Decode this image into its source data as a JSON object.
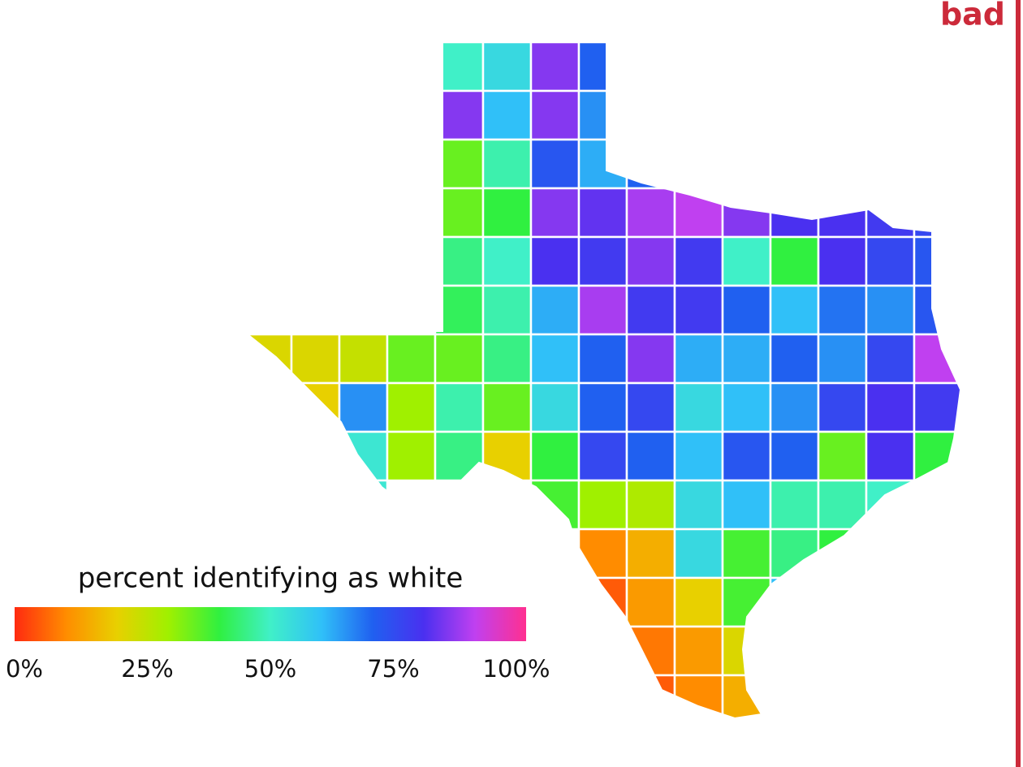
{
  "label": "bad",
  "chart_data": {
    "type": "choropleth",
    "title": "percent identifying as white",
    "cells": [
      [
        null,
        null,
        null,
        null,
        50,
        55,
        85,
        70,
        null,
        null,
        null,
        null,
        null,
        null,
        null
      ],
      [
        null,
        null,
        null,
        null,
        85,
        60,
        85,
        65,
        null,
        null,
        null,
        null,
        null,
        null,
        null
      ],
      [
        null,
        null,
        null,
        null,
        35,
        48,
        72,
        62,
        70,
        75,
        90,
        80,
        80,
        78,
        65
      ],
      [
        null,
        null,
        null,
        null,
        35,
        40,
        85,
        82,
        88,
        90,
        85,
        80,
        80,
        78,
        75
      ],
      [
        null,
        null,
        null,
        null,
        45,
        50,
        80,
        78,
        85,
        78,
        50,
        40,
        80,
        75,
        72
      ],
      [
        null,
        null,
        null,
        null,
        42,
        48,
        62,
        88,
        78,
        78,
        70,
        60,
        68,
        65,
        72
      ],
      [
        22,
        22,
        25,
        35,
        35,
        45,
        60,
        70,
        85,
        62,
        62,
        70,
        65,
        75,
        90
      ],
      [
        null,
        20,
        65,
        30,
        48,
        35,
        55,
        70,
        75,
        55,
        60,
        65,
        75,
        80,
        78
      ],
      [
        null,
        17,
        52,
        30,
        45,
        20,
        40,
        75,
        70,
        60,
        72,
        70,
        35,
        80,
        40
      ],
      [
        null,
        null,
        52,
        null,
        null,
        null,
        38,
        30,
        28,
        55,
        60,
        48,
        48,
        50,
        null
      ],
      [
        null,
        null,
        null,
        null,
        null,
        null,
        null,
        10,
        15,
        55,
        38,
        45,
        40,
        null,
        null
      ],
      [
        null,
        null,
        null,
        null,
        null,
        null,
        null,
        5,
        12,
        20,
        38,
        60,
        null,
        null,
        null
      ],
      [
        null,
        null,
        null,
        null,
        null,
        null,
        null,
        null,
        8,
        12,
        22,
        null,
        null,
        null,
        null
      ],
      [
        null,
        null,
        null,
        null,
        null,
        null,
        null,
        null,
        5,
        10,
        15,
        null,
        null,
        null,
        null
      ]
    ],
    "colorbar": {
      "lim": [
        0,
        100
      ],
      "ticks": [
        {
          "value": 0,
          "label": "0%"
        },
        {
          "value": 25,
          "label": "25%"
        },
        {
          "value": 50,
          "label": "50%"
        },
        {
          "value": 75,
          "label": "75%"
        },
        {
          "value": 100,
          "label": "100%"
        }
      ],
      "colors": [
        "#ff2a10",
        "#ff8c00",
        "#e8d000",
        "#a0f000",
        "#30f040",
        "#40f0c8",
        "#30c0f8",
        "#2060f0",
        "#4a30f0",
        "#c040f0",
        "#ff3090"
      ]
    }
  }
}
